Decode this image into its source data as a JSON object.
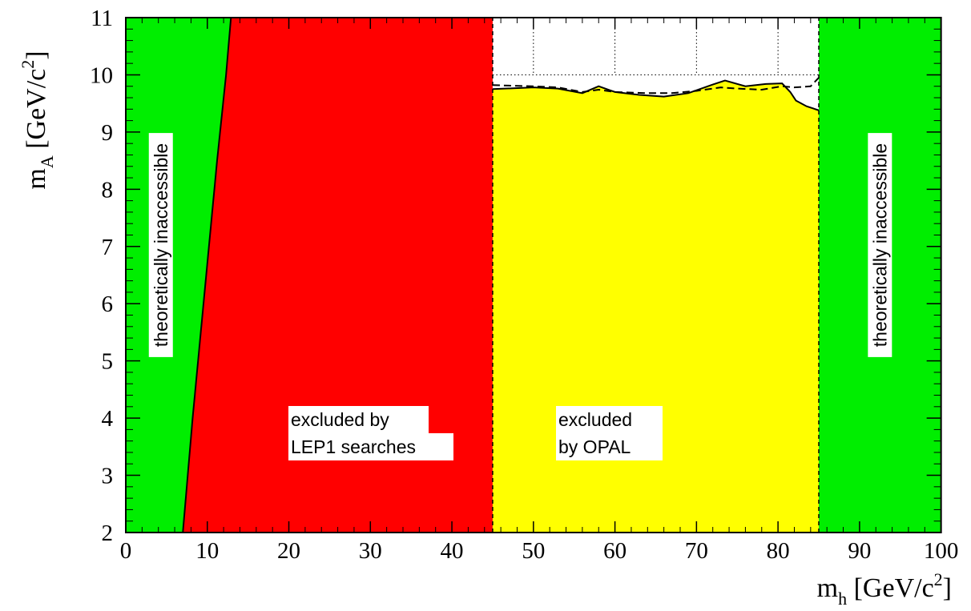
{
  "chart_data": {
    "type": "area",
    "xlabel": {
      "main": "m",
      "sub": "h",
      "unit_pre": " [GeV/c",
      "sup": "2",
      "unit_post": "]"
    },
    "ylabel": {
      "main": "m",
      "sub": "A",
      "unit_pre": " [GeV/c",
      "sup": "2",
      "unit_post": "]"
    },
    "xlim": [
      0,
      100
    ],
    "ylim": [
      2,
      11
    ],
    "x_ticks": [
      "0",
      "10",
      "20",
      "30",
      "40",
      "50",
      "60",
      "70",
      "80",
      "90",
      "100"
    ],
    "y_ticks": [
      "2",
      "3",
      "4",
      "5",
      "6",
      "7",
      "8",
      "9",
      "10",
      "11"
    ],
    "grid": "dotted, upper-right region only",
    "colors": {
      "theoretical": "#00ee00",
      "lep1": "#ff0000",
      "opal": "#ffff00",
      "line": "#000000"
    },
    "regions": [
      {
        "name": "theoretically inaccessible",
        "x": [
          0,
          85
        ],
        "note": "left",
        "label": "theoretically inaccessible"
      },
      {
        "name": "theoretically inaccessible",
        "label": "theoretically inaccessible"
      },
      {
        "name": "excluded by LEP1 searches",
        "label_lines": [
          "excluded by",
          "LEP1 searches"
        ]
      },
      {
        "name": "excluded by OPAL",
        "label_lines": [
          "excluded",
          "by OPAL"
        ]
      }
    ],
    "theoretical_boundary_left": [
      [
        7,
        2
      ],
      [
        7.6,
        3
      ],
      [
        8.2,
        4
      ],
      [
        9.2,
        5.5
      ],
      [
        10.2,
        7
      ],
      [
        11.2,
        8.5
      ],
      [
        12.3,
        10
      ],
      [
        12.9,
        11
      ]
    ],
    "theoretical_boundary_right_x": 85,
    "lep1_boundary_x": 45,
    "opal_observed": [
      [
        45,
        9.75
      ],
      [
        50,
        9.78
      ],
      [
        53,
        9.76
      ],
      [
        56,
        9.68
      ],
      [
        58,
        9.8
      ],
      [
        60,
        9.7
      ],
      [
        63,
        9.65
      ],
      [
        66,
        9.62
      ],
      [
        69,
        9.68
      ],
      [
        72,
        9.83
      ],
      [
        73.5,
        9.9
      ],
      [
        76,
        9.8
      ],
      [
        78.5,
        9.84
      ],
      [
        80.5,
        9.85
      ],
      [
        81.5,
        9.7
      ],
      [
        82.2,
        9.55
      ],
      [
        83.5,
        9.45
      ],
      [
        85,
        9.38
      ]
    ],
    "opal_expected": [
      [
        45,
        9.82
      ],
      [
        50,
        9.8
      ],
      [
        53,
        9.78
      ],
      [
        56,
        9.7
      ],
      [
        58,
        9.74
      ],
      [
        60,
        9.7
      ],
      [
        64,
        9.68
      ],
      [
        67,
        9.68
      ],
      [
        70,
        9.72
      ],
      [
        73,
        9.78
      ],
      [
        75,
        9.76
      ],
      [
        78,
        9.74
      ],
      [
        80.5,
        9.8
      ],
      [
        82,
        9.78
      ],
      [
        84,
        9.8
      ],
      [
        85,
        9.95
      ]
    ]
  }
}
